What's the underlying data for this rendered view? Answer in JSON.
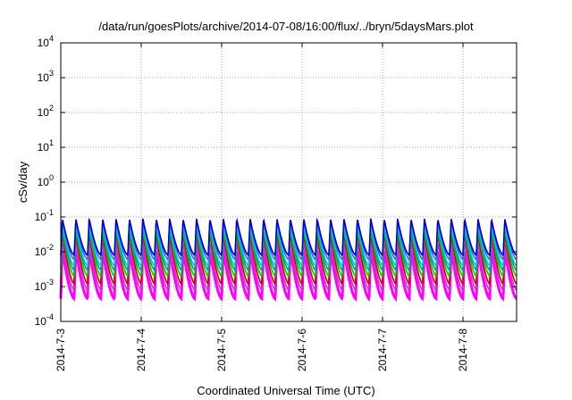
{
  "chart_data": {
    "type": "line",
    "title": "/data/run/goesPlots/archive/2014-07-08/16:00/flux/../bryn/5daysMars.plot",
    "xlabel": "Coordinated Universal Time (UTC)",
    "ylabel": "cSv/day",
    "yscale": "log",
    "ylim": [
      0.0001,
      10000
    ],
    "xlim": [
      "2014-07-03",
      "2014-07-08T16:00"
    ],
    "grid": true,
    "x_ticks": [
      "2014-7-3",
      "2014-7-4",
      "2014-7-5",
      "2014-7-6",
      "2014-7-7",
      "2014-7-8"
    ],
    "y_ticks": [
      {
        "base": "10",
        "exp": "-4"
      },
      {
        "base": "10",
        "exp": "-3"
      },
      {
        "base": "10",
        "exp": "-2"
      },
      {
        "base": "10",
        "exp": "-1"
      },
      {
        "base": "10",
        "exp": "0"
      },
      {
        "base": "10",
        "exp": "1"
      },
      {
        "base": "10",
        "exp": "2"
      },
      {
        "base": "10",
        "exp": "3"
      },
      {
        "base": "10",
        "exp": "4"
      }
    ],
    "pattern": {
      "description_hidden": true,
      "cycles_per_day": 6,
      "peak_value": 0.09,
      "trough_value": 0.0004
    },
    "series": [
      {
        "color": "#ff00ff",
        "peak": 0.012,
        "trough": 0.00045
      },
      {
        "color": "#cc33cc",
        "peak": 0.02,
        "trough": 0.0008
      },
      {
        "color": "#cc0000",
        "peak": 0.035,
        "trough": 0.0012
      },
      {
        "color": "#00cc00",
        "peak": 0.045,
        "trough": 0.002
      },
      {
        "color": "#009999",
        "peak": 0.055,
        "trough": 0.003
      },
      {
        "color": "#00cccc",
        "peak": 0.065,
        "trough": 0.004
      },
      {
        "color": "#3366ff",
        "peak": 0.08,
        "trough": 0.006
      },
      {
        "color": "#0000cc",
        "peak": 0.09,
        "trough": 0.008
      }
    ]
  }
}
